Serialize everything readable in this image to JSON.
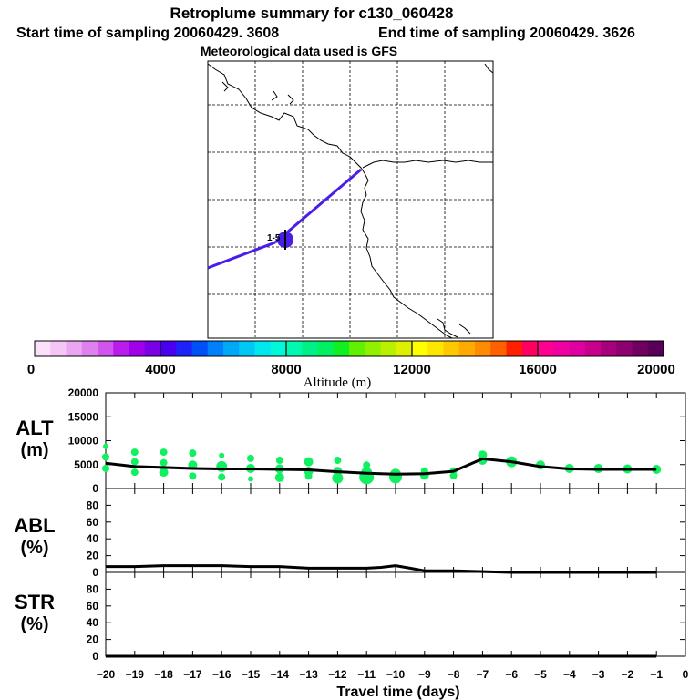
{
  "header": {
    "title": "Retroplume summary for c130_060428",
    "start_label": "Start time of sampling 20060429.  3608",
    "end_label": "End time of sampling 20060429.  3626",
    "met_label": "Meteorological data used is GFS"
  },
  "map": {
    "marker_label": "1-5",
    "plume_color": "#4a1ee8",
    "coast_color": "#000000"
  },
  "colorbar": {
    "title": "Altitude (m)",
    "tick_labels": [
      "0",
      "4000",
      "8000",
      "12000",
      "16000",
      "20000"
    ],
    "colors": [
      "#fbe0fb",
      "#f4c6f6",
      "#eaa6f1",
      "#de80ee",
      "#cf55ee",
      "#bb1cee",
      "#a000ea",
      "#7a00e6",
      "#4a00f0",
      "#2020f8",
      "#0050fa",
      "#0080fa",
      "#00a8f8",
      "#00c8f4",
      "#00e8ee",
      "#00f8d8",
      "#00f8b0",
      "#00f088",
      "#00f060",
      "#10f020",
      "#60f000",
      "#90f000",
      "#b8f000",
      "#dcf000",
      "#ffff00",
      "#ffe600",
      "#ffc800",
      "#ffaa00",
      "#ff8c00",
      "#ff6000",
      "#ff2000",
      "#ff0060",
      "#ff0090",
      "#f000a0",
      "#e000a0",
      "#c8008c",
      "#a8007c",
      "#8c0070",
      "#700060",
      "#580058"
    ]
  },
  "panels": {
    "alt_label": "ALT",
    "alt_unit": "(m)",
    "abl_label": "ABL",
    "abl_unit": "(%)",
    "str_label": "STR",
    "str_unit": "(%)",
    "xlabel": "Travel time (days)"
  },
  "chart_data": {
    "type": "line",
    "x_ticks": [
      -20,
      -19,
      -18,
      -17,
      -16,
      -15,
      -14,
      -13,
      -12,
      -11,
      -10,
      -9,
      -8,
      -7,
      -6,
      -5,
      -4,
      -3,
      -2,
      -1,
      0
    ],
    "x_tick_labels": [
      "−20",
      "−19",
      "−18",
      "−17",
      "−16",
      "−15",
      "−14",
      "−13",
      "−12",
      "−11",
      "−10",
      "−9",
      "−8",
      "−7",
      "−6",
      "−5",
      "−4",
      "−3",
      "−2",
      "−1",
      "0"
    ],
    "xlim": [
      -20,
      0
    ],
    "xlabel": "Travel time (days)",
    "alt": {
      "ylabel": "ALT (m)",
      "ylim": [
        0,
        20000
      ],
      "y_ticks": [
        0,
        5000,
        10000,
        15000,
        20000
      ],
      "y_tick_labels": [
        "0",
        "5000",
        "10000",
        "15000",
        "20000"
      ],
      "line_x": [
        -20,
        -19,
        -18,
        -17,
        -16,
        -15,
        -14,
        -13,
        -12,
        -11,
        -10,
        -9,
        -8,
        -7,
        -6,
        -5,
        -4,
        -3,
        -2,
        -1
      ],
      "line_y": [
        5300,
        4600,
        4400,
        4200,
        4100,
        4100,
        4000,
        3900,
        3500,
        3200,
        3000,
        3100,
        3600,
        6200,
        5600,
        4600,
        4100,
        4000,
        4000,
        4000
      ],
      "dots": [
        {
          "x": -20,
          "y": 8800,
          "s": 3
        },
        {
          "x": -20,
          "y": 6600,
          "s": 4
        },
        {
          "x": -20,
          "y": 4200,
          "s": 4
        },
        {
          "x": -19,
          "y": 7600,
          "s": 4
        },
        {
          "x": -19,
          "y": 5600,
          "s": 4
        },
        {
          "x": -19,
          "y": 3400,
          "s": 4
        },
        {
          "x": -18,
          "y": 7600,
          "s": 4
        },
        {
          "x": -18,
          "y": 5400,
          "s": 4
        },
        {
          "x": -18,
          "y": 3400,
          "s": 5
        },
        {
          "x": -17,
          "y": 7400,
          "s": 4
        },
        {
          "x": -17,
          "y": 4900,
          "s": 5
        },
        {
          "x": -17,
          "y": 2600,
          "s": 4
        },
        {
          "x": -16,
          "y": 6900,
          "s": 3
        },
        {
          "x": -16,
          "y": 4600,
          "s": 6
        },
        {
          "x": -16,
          "y": 2400,
          "s": 4
        },
        {
          "x": -15,
          "y": 6300,
          "s": 4
        },
        {
          "x": -15,
          "y": 4200,
          "s": 5
        },
        {
          "x": -15,
          "y": 2000,
          "s": 3
        },
        {
          "x": -14,
          "y": 5900,
          "s": 4
        },
        {
          "x": -14,
          "y": 4100,
          "s": 5
        },
        {
          "x": -14,
          "y": 2300,
          "s": 5
        },
        {
          "x": -13,
          "y": 5600,
          "s": 5
        },
        {
          "x": -13,
          "y": 3600,
          "s": 5
        },
        {
          "x": -13,
          "y": 2600,
          "s": 4
        },
        {
          "x": -12,
          "y": 5900,
          "s": 4
        },
        {
          "x": -12,
          "y": 3600,
          "s": 5
        },
        {
          "x": -12,
          "y": 2200,
          "s": 6
        },
        {
          "x": -11,
          "y": 4900,
          "s": 4
        },
        {
          "x": -11,
          "y": 3300,
          "s": 6
        },
        {
          "x": -11,
          "y": 2400,
          "s": 8
        },
        {
          "x": -10,
          "y": 3000,
          "s": 6
        },
        {
          "x": -10,
          "y": 2400,
          "s": 7
        },
        {
          "x": -10,
          "y": 2000,
          "s": 5
        },
        {
          "x": -9,
          "y": 3700,
          "s": 4
        },
        {
          "x": -9,
          "y": 2800,
          "s": 5
        },
        {
          "x": -8,
          "y": 3700,
          "s": 4
        },
        {
          "x": -8,
          "y": 2700,
          "s": 4
        },
        {
          "x": -7,
          "y": 7000,
          "s": 5
        },
        {
          "x": -7,
          "y": 5900,
          "s": 5
        },
        {
          "x": -6,
          "y": 5600,
          "s": 6
        },
        {
          "x": -5,
          "y": 4900,
          "s": 5
        },
        {
          "x": -4,
          "y": 4200,
          "s": 5
        },
        {
          "x": -3,
          "y": 4200,
          "s": 5
        },
        {
          "x": -2,
          "y": 4100,
          "s": 5
        },
        {
          "x": -1,
          "y": 4000,
          "s": 5
        }
      ]
    },
    "abl": {
      "ylabel": "ABL (%)",
      "ylim": [
        0,
        100
      ],
      "y_ticks": [
        0,
        20,
        40,
        60,
        80
      ],
      "y_tick_labels": [
        "0",
        "20",
        "40",
        "60",
        "80"
      ],
      "line_x": [
        -20,
        -19,
        -18,
        -17,
        -16,
        -15,
        -14,
        -13,
        -12,
        -11,
        -10.5,
        -10,
        -9.5,
        -9,
        -8,
        -7,
        -6,
        -5,
        -4,
        -3,
        -2,
        -1
      ],
      "line_y": [
        7,
        7,
        8,
        8,
        8,
        7,
        7,
        5,
        5,
        5,
        6,
        8,
        5,
        2,
        2,
        1,
        0,
        0,
        0,
        0,
        0,
        0
      ]
    },
    "str": {
      "ylabel": "STR (%)",
      "ylim": [
        0,
        100
      ],
      "y_ticks": [
        0,
        20,
        40,
        60,
        80
      ],
      "y_tick_labels": [
        "0",
        "20",
        "40",
        "60",
        "80"
      ],
      "line_x": [
        -20,
        -1
      ],
      "line_y": [
        0,
        0
      ]
    }
  }
}
